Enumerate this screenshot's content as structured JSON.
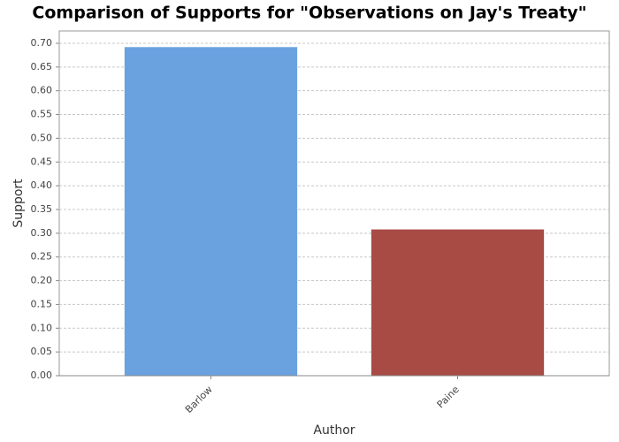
{
  "chart_data": {
    "type": "bar",
    "title": "Comparison of Supports for \"Observations on Jay's Treaty\"",
    "x_label": "Author",
    "y_label": "Support",
    "categories": [
      "Barlow",
      "Paine"
    ],
    "values": [
      0.692,
      0.308
    ],
    "colors": [
      "#6aa2e0",
      "#a84b45"
    ],
    "ylim": [
      0,
      0.726
    ],
    "yticks": [
      {
        "value": 0,
        "label": "0.00"
      },
      0.05,
      {
        "value": 0.1,
        "label": "0.10"
      },
      0.15,
      {
        "value": 0.2,
        "label": "0.20"
      },
      0.25,
      {
        "value": 0.3,
        "label": "0.30"
      },
      0.35,
      {
        "value": 0.4,
        "label": "0.40"
      },
      0.45,
      {
        "value": 0.5,
        "label": "0.50"
      },
      0.55,
      {
        "value": 0.6,
        "label": "0.60"
      },
      0.65,
      {
        "value": 0.7,
        "label": "0.70"
      }
    ],
    "grid": true
  }
}
